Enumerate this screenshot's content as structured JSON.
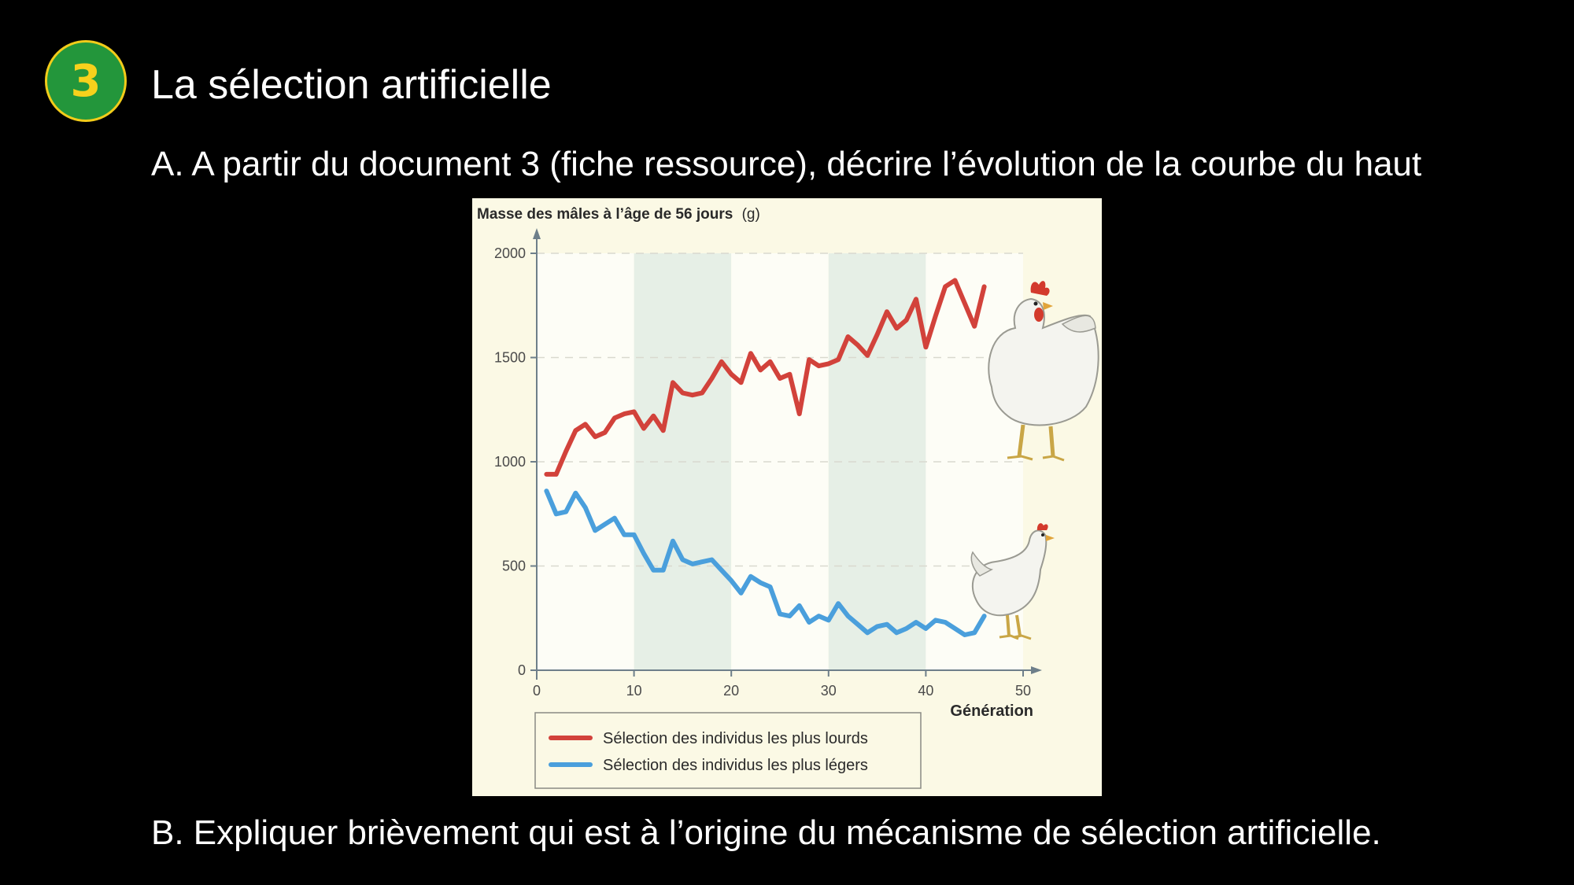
{
  "slide": {
    "badge_number": "3",
    "title": "La sélection artificielle",
    "question_a": "A. A partir du document 3 (fiche ressource), décrire l’évolution de la courbe du haut",
    "question_b": "B. Expliquer brièvement qui est à l’origine du mécanisme de sélection artificielle."
  },
  "colors": {
    "background": "#000000",
    "badge_fill": "#23963b",
    "badge_border": "#f2cc1a",
    "chart_bg": "#fbf9e5",
    "heavy_series": "#d2423b",
    "light_series": "#4a9fdc"
  },
  "chart_data": {
    "type": "line",
    "ylabel": "Masse des mâles à l’âge de 56 jours",
    "ylabel_unit": "(g)",
    "xlabel": "Génération",
    "xlim": [
      0,
      50
    ],
    "ylim": [
      0,
      2000
    ],
    "xticks": [
      "0",
      "10",
      "20",
      "30",
      "40",
      "50"
    ],
    "yticks": [
      "0",
      "500",
      "1000",
      "1500",
      "2000"
    ],
    "grid": "horizontal dashed",
    "alternating_bands": true,
    "legend_position": "bottom-left",
    "illustrations": [
      "heavy-chicken",
      "light-chicken"
    ],
    "series": [
      {
        "name": "Sélection des individus les plus lourds",
        "color": "#d2423b",
        "x": [
          1,
          2,
          3,
          4,
          5,
          6,
          7,
          8,
          9,
          10,
          11,
          12,
          13,
          14,
          15,
          16,
          17,
          18,
          19,
          20,
          21,
          22,
          23,
          24,
          25,
          26,
          27,
          28,
          29,
          30,
          31,
          32,
          33,
          34,
          35,
          36,
          37,
          38,
          39,
          40,
          41,
          42,
          43,
          44,
          45,
          46
        ],
        "y": [
          940,
          940,
          1050,
          1150,
          1180,
          1120,
          1140,
          1210,
          1230,
          1240,
          1160,
          1220,
          1150,
          1380,
          1330,
          1320,
          1330,
          1400,
          1480,
          1420,
          1380,
          1520,
          1440,
          1480,
          1400,
          1420,
          1230,
          1490,
          1460,
          1470,
          1490,
          1600,
          1560,
          1510,
          1610,
          1720,
          1640,
          1680,
          1780,
          1550,
          1700,
          1840,
          1870,
          1760,
          1650,
          1840
        ]
      },
      {
        "name": "Sélection des individus les plus légers",
        "color": "#4a9fdc",
        "x": [
          1,
          2,
          3,
          4,
          5,
          6,
          7,
          8,
          9,
          10,
          11,
          12,
          13,
          14,
          15,
          16,
          17,
          18,
          19,
          20,
          21,
          22,
          23,
          24,
          25,
          26,
          27,
          28,
          29,
          30,
          31,
          32,
          33,
          34,
          35,
          36,
          37,
          38,
          39,
          40,
          41,
          42,
          43,
          44,
          45,
          46
        ],
        "y": [
          860,
          750,
          760,
          850,
          780,
          670,
          700,
          730,
          650,
          650,
          560,
          480,
          480,
          620,
          530,
          510,
          520,
          530,
          480,
          430,
          370,
          450,
          420,
          400,
          270,
          260,
          310,
          230,
          260,
          240,
          320,
          260,
          220,
          180,
          210,
          220,
          180,
          200,
          230,
          200,
          240,
          230,
          200,
          170,
          180,
          260
        ]
      }
    ]
  }
}
